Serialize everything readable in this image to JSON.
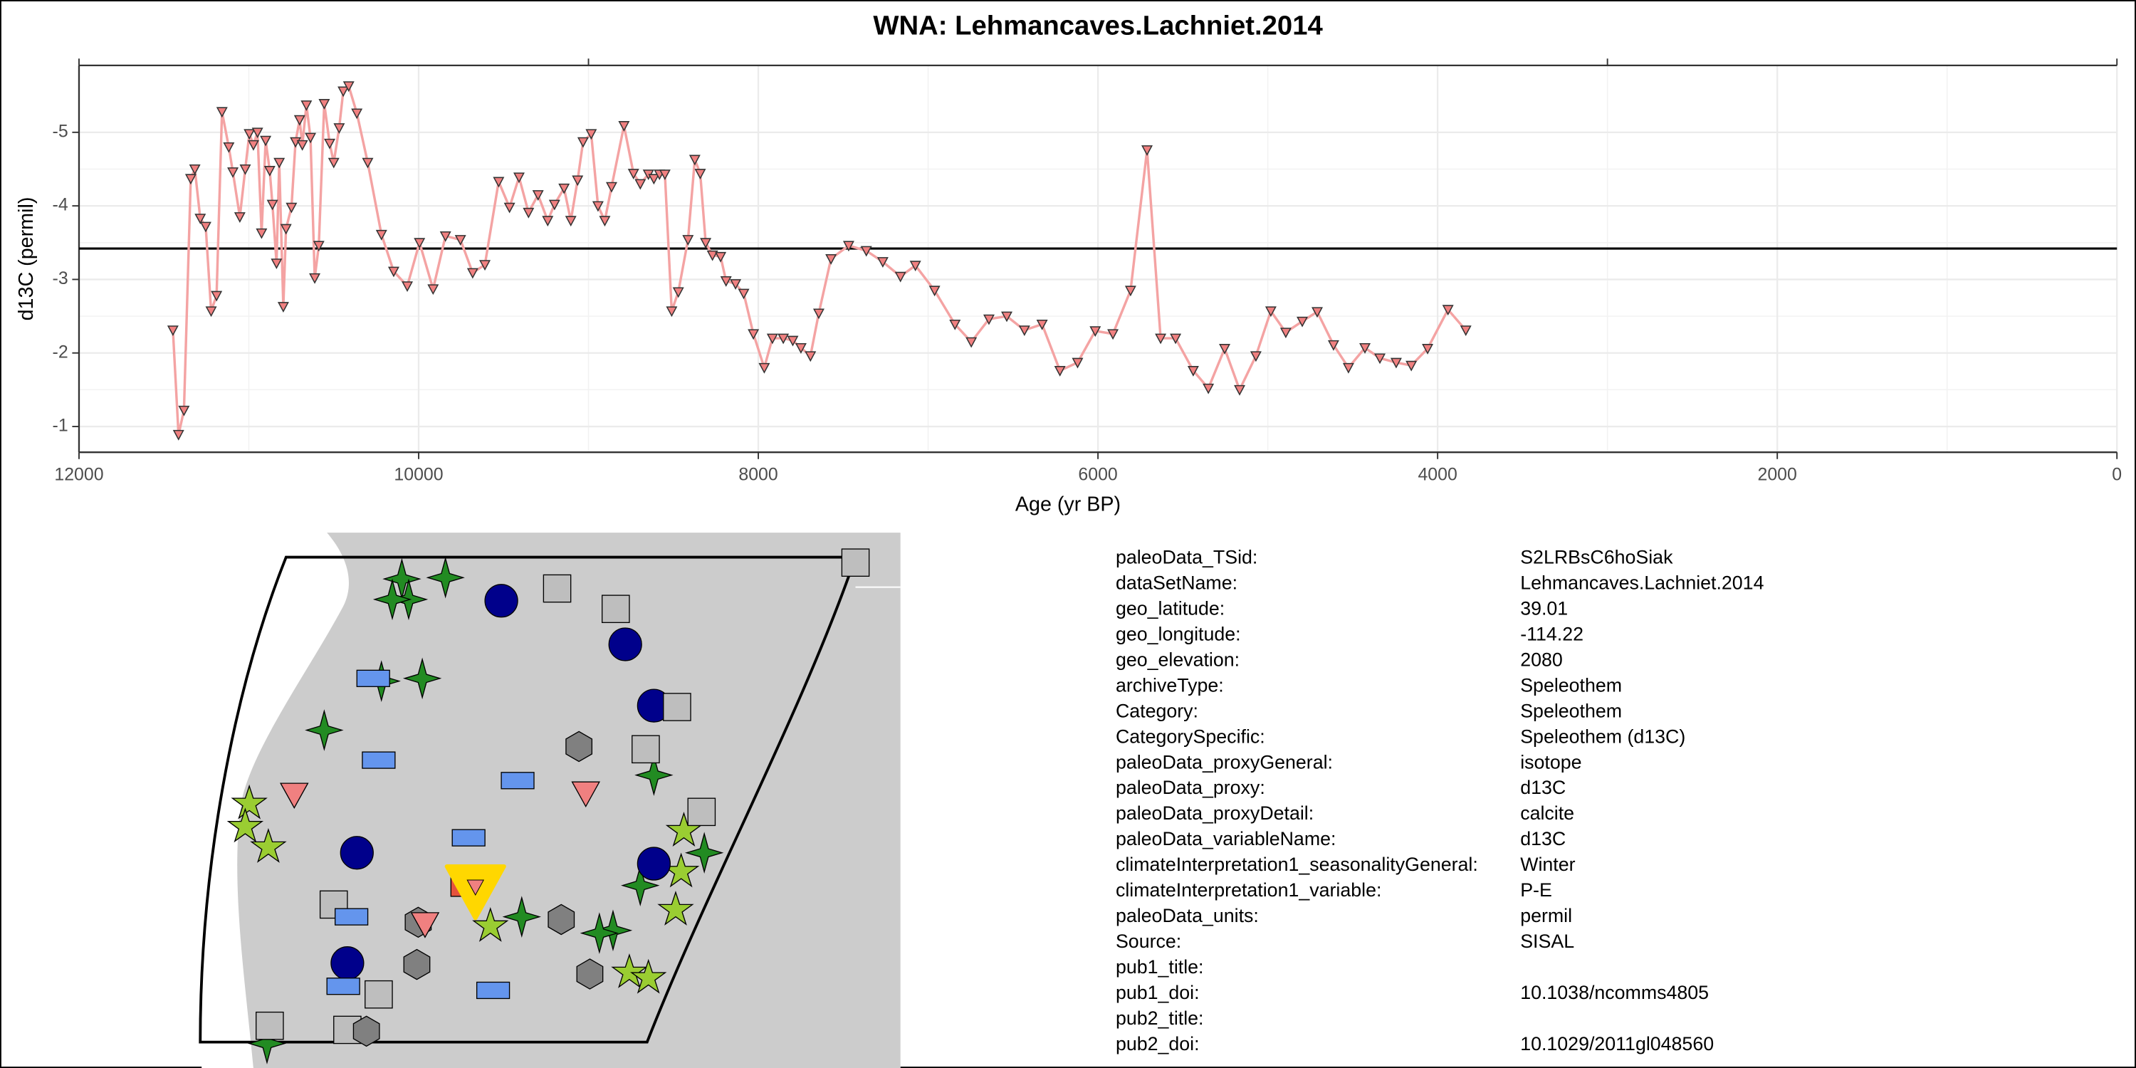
{
  "chart_data": {
    "type": "line",
    "title": "WNA: Lehmancaves.Lachniet.2014",
    "x_label": "Age (yr BP)",
    "y_label": "d13C (permil)",
    "xlim": [
      12000,
      0
    ],
    "xticks": [
      12000,
      10000,
      8000,
      6000,
      4000,
      2000,
      0
    ],
    "x2ticks": [
      12000,
      9000,
      3000,
      0
    ],
    "ylim": [
      -0.65,
      -5.91
    ],
    "yticks": [
      -5,
      -4,
      -3,
      -2,
      -1
    ],
    "grid": true,
    "hline": -3.42,
    "series": [
      {
        "color": "#f4a3a3",
        "marker_color": "#f08080",
        "x": [
          11447,
          11414,
          11382,
          11342,
          11318,
          11286,
          11254,
          11222,
          11190,
          11158,
          11118,
          11094,
          11053,
          11021,
          10997,
          10973,
          10949,
          10925,
          10901,
          10877,
          10861,
          10837,
          10821,
          10797,
          10781,
          10749,
          10725,
          10701,
          10685,
          10661,
          10637,
          10612,
          10588,
          10556,
          10524,
          10500,
          10468,
          10444,
          10412,
          10364,
          10300,
          10219,
          10147,
          10067,
          9995,
          9915,
          9842,
          9754,
          9682,
          9610,
          9529,
          9465,
          9409,
          9353,
          9297,
          9240,
          9200,
          9144,
          9104,
          9064,
          9032,
          8984,
          8944,
          8904,
          8864,
          8791,
          8735,
          8695,
          8647,
          8615,
          8582,
          8550,
          8510,
          8471,
          8414,
          8374,
          8342,
          8310,
          8270,
          8222,
          8190,
          8134,
          8086,
          8029,
          7965,
          7917,
          7853,
          7797,
          7749,
          7693,
          7644,
          7572,
          7468,
          7364,
          7267,
          7163,
          7075,
          6962,
          6842,
          6746,
          6642,
          6537,
          6433,
          6329,
          6224,
          6120,
          6016,
          5912,
          5808,
          5711,
          5631,
          5543,
          5439,
          5350,
          5254,
          5166,
          5070,
          4982,
          4894,
          4797,
          4709,
          4613,
          4525,
          4428,
          4340,
          4244,
          4155,
          4059,
          3939,
          3834
        ],
        "values": [
          -2.31,
          -0.89,
          -1.22,
          -4.37,
          -4.5,
          -3.83,
          -3.72,
          -2.57,
          -2.78,
          -5.28,
          -4.8,
          -4.46,
          -3.85,
          -4.5,
          -4.98,
          -4.83,
          -5.0,
          -3.63,
          -4.89,
          -4.48,
          -4.02,
          -3.22,
          -4.59,
          -2.63,
          -3.69,
          -3.98,
          -4.87,
          -5.17,
          -4.83,
          -5.37,
          -4.93,
          -3.02,
          -3.46,
          -5.39,
          -4.85,
          -4.59,
          -5.06,
          -5.56,
          -5.63,
          -5.26,
          -4.59,
          -3.61,
          -3.11,
          -2.91,
          -3.5,
          -2.87,
          -3.59,
          -3.54,
          -3.09,
          -3.2,
          -4.33,
          -3.98,
          -4.39,
          -3.91,
          -4.15,
          -3.8,
          -4.02,
          -4.24,
          -3.8,
          -4.35,
          -4.87,
          -4.98,
          -4.0,
          -3.8,
          -4.26,
          -5.09,
          -4.44,
          -4.3,
          -4.43,
          -4.37,
          -4.43,
          -4.43,
          -2.57,
          -2.83,
          -3.54,
          -4.63,
          -4.44,
          -3.5,
          -3.33,
          -3.31,
          -2.98,
          -2.94,
          -2.81,
          -2.26,
          -1.8,
          -2.2,
          -2.2,
          -2.17,
          -2.07,
          -1.96,
          -2.54,
          -3.28,
          -3.46,
          -3.39,
          -3.24,
          -3.04,
          -3.19,
          -2.85,
          -2.39,
          -2.15,
          -2.46,
          -2.5,
          -2.31,
          -2.39,
          -1.76,
          -1.87,
          -2.3,
          -2.26,
          -2.85,
          -4.76,
          -2.2,
          -2.2,
          -1.76,
          -1.52,
          -2.06,
          -1.5,
          -1.96,
          -2.57,
          -2.28,
          -2.43,
          -2.56,
          -2.11,
          -1.8,
          -2.07,
          -1.93,
          -1.87,
          -1.83,
          -2.06,
          -2.59,
          -2.31
        ]
      }
    ]
  },
  "metadata": [
    {
      "key": "paleoData_TSid:",
      "value": "S2LRBsC6hoSiak"
    },
    {
      "key": "dataSetName:",
      "value": "Lehmancaves.Lachniet.2014"
    },
    {
      "key": "geo_latitude:",
      "value": "39.01"
    },
    {
      "key": "geo_longitude:",
      "value": "-114.22"
    },
    {
      "key": "geo_elevation:",
      "value": "2080"
    },
    {
      "key": "archiveType:",
      "value": "Speleothem"
    },
    {
      "key": "Category:",
      "value": "Speleothem"
    },
    {
      "key": "CategorySpecific:",
      "value": "Speleothem (d13C)"
    },
    {
      "key": "paleoData_proxyGeneral:",
      "value": "isotope"
    },
    {
      "key": "paleoData_proxy:",
      "value": "d13C"
    },
    {
      "key": "paleoData_proxyDetail:",
      "value": "calcite"
    },
    {
      "key": "paleoData_variableName:",
      "value": "d13C"
    },
    {
      "key": "climateInterpretation1_seasonalityGeneral:",
      "value": "Winter"
    },
    {
      "key": "climateInterpretation1_variable:",
      "value": "P-E"
    },
    {
      "key": "paleoData_units:",
      "value": "permil"
    },
    {
      "key": "Source:",
      "value": "SISAL"
    },
    {
      "key": "pub1_title:"
    },
    {
      "key": "pub1_doi:",
      "value": "10.1038/ncomms4805"
    },
    {
      "key": "pub2_title:"
    },
    {
      "key": "pub2_doi:",
      "value": "10.1029/2011gl048560"
    }
  ]
}
